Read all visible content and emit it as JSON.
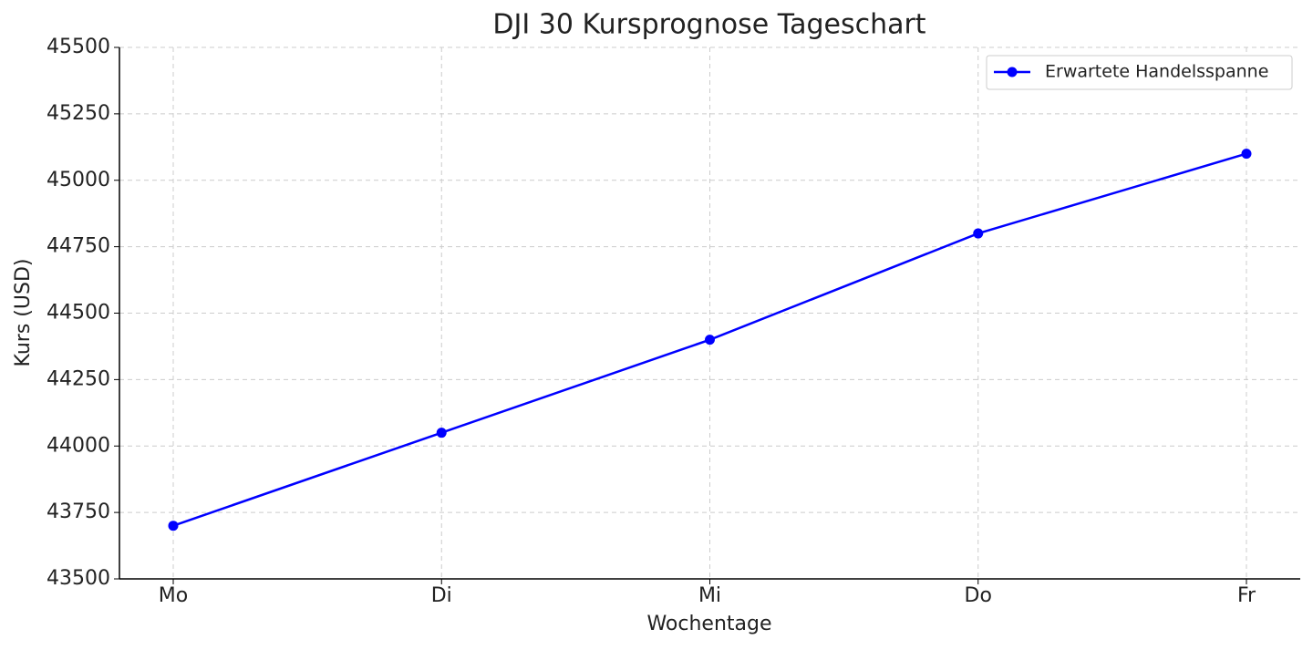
{
  "chart_data": {
    "type": "line",
    "title": "DJI 30 Kursprognose Tageschart",
    "x_label": "Wochentage",
    "y_label": "Kurs (USD)",
    "categories": [
      "Mo",
      "Di",
      "Mi",
      "Do",
      "Fr"
    ],
    "series": [
      {
        "name": "Erwartete Handelsspanne",
        "color": "#0000ff",
        "values": [
          43700,
          44050,
          44400,
          44800,
          45100
        ]
      }
    ],
    "ylim": [
      43500,
      45500
    ],
    "yticks": [
      43500,
      43750,
      44000,
      44250,
      44500,
      44750,
      45000,
      45250,
      45500
    ],
    "grid": true,
    "legend": "upper right"
  }
}
